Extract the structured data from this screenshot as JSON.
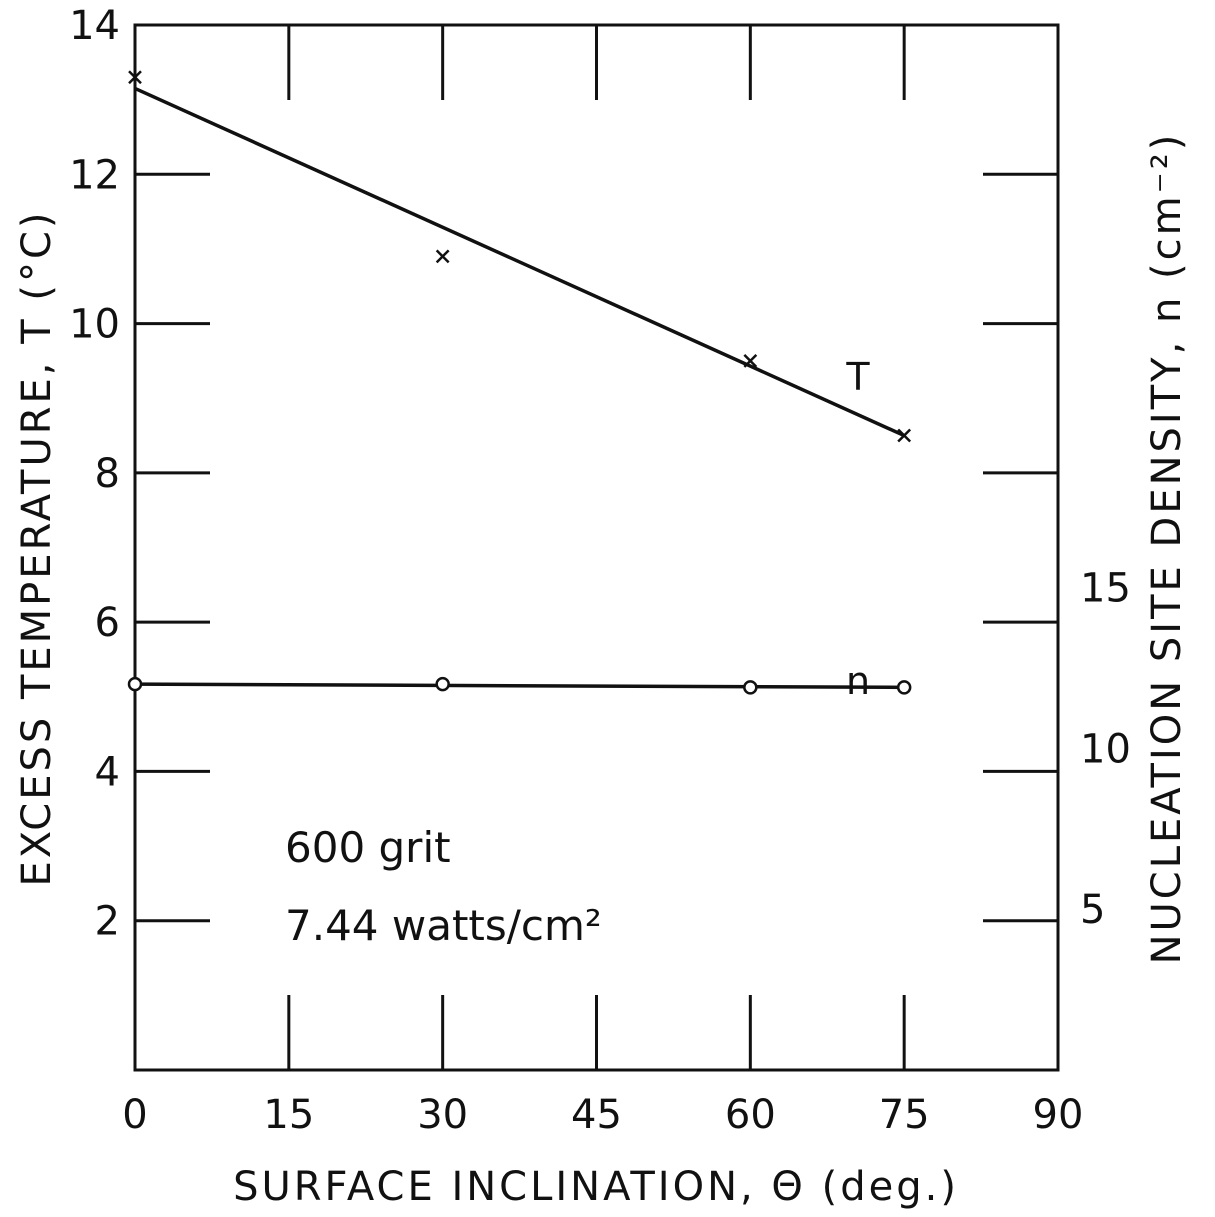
{
  "chart_data": {
    "type": "line",
    "title": "",
    "xlabel": "SURFACE INCLINATION, Θ (deg.)",
    "ylabel_left": "EXCESS TEMPERATURE, T (°C)",
    "ylabel_right": "NUCLEATION SITE DENSITY, n (cm⁻²)",
    "xlim": [
      0,
      90
    ],
    "ylim_left": [
      0,
      14
    ],
    "ylim_right": [
      0,
      32.5
    ],
    "x_ticks": [
      0,
      15,
      30,
      45,
      60,
      75,
      90
    ],
    "x_tick_labels": [
      "0",
      "15",
      "30",
      "45",
      "60",
      "75",
      "90"
    ],
    "y_left_ticks": [
      2,
      4,
      6,
      8,
      10,
      12,
      14
    ],
    "y_left_tick_labels": [
      "2",
      "4",
      "6",
      "8",
      "10",
      "12",
      "14"
    ],
    "y_right_ticks": [
      5,
      10,
      15
    ],
    "y_right_tick_labels": [
      "5",
      "10",
      "15"
    ],
    "grid": false,
    "series": [
      {
        "name": "T",
        "axis": "left",
        "marker": "x",
        "x": [
          0,
          30,
          60,
          75
        ],
        "y": [
          13.3,
          10.9,
          9.5,
          8.5
        ],
        "fit": {
          "x": [
            0,
            75
          ],
          "y": [
            13.15,
            8.5
          ]
        }
      },
      {
        "name": "n",
        "axis": "right",
        "marker": "o",
        "x": [
          0,
          30,
          60,
          75
        ],
        "y": [
          12.0,
          12.0,
          11.9,
          11.9
        ],
        "fit": {
          "x": [
            0,
            75
          ],
          "y": [
            12.0,
            11.9
          ]
        }
      }
    ],
    "annotations": [
      "600 grit",
      "7.44 watts/cm²"
    ]
  }
}
